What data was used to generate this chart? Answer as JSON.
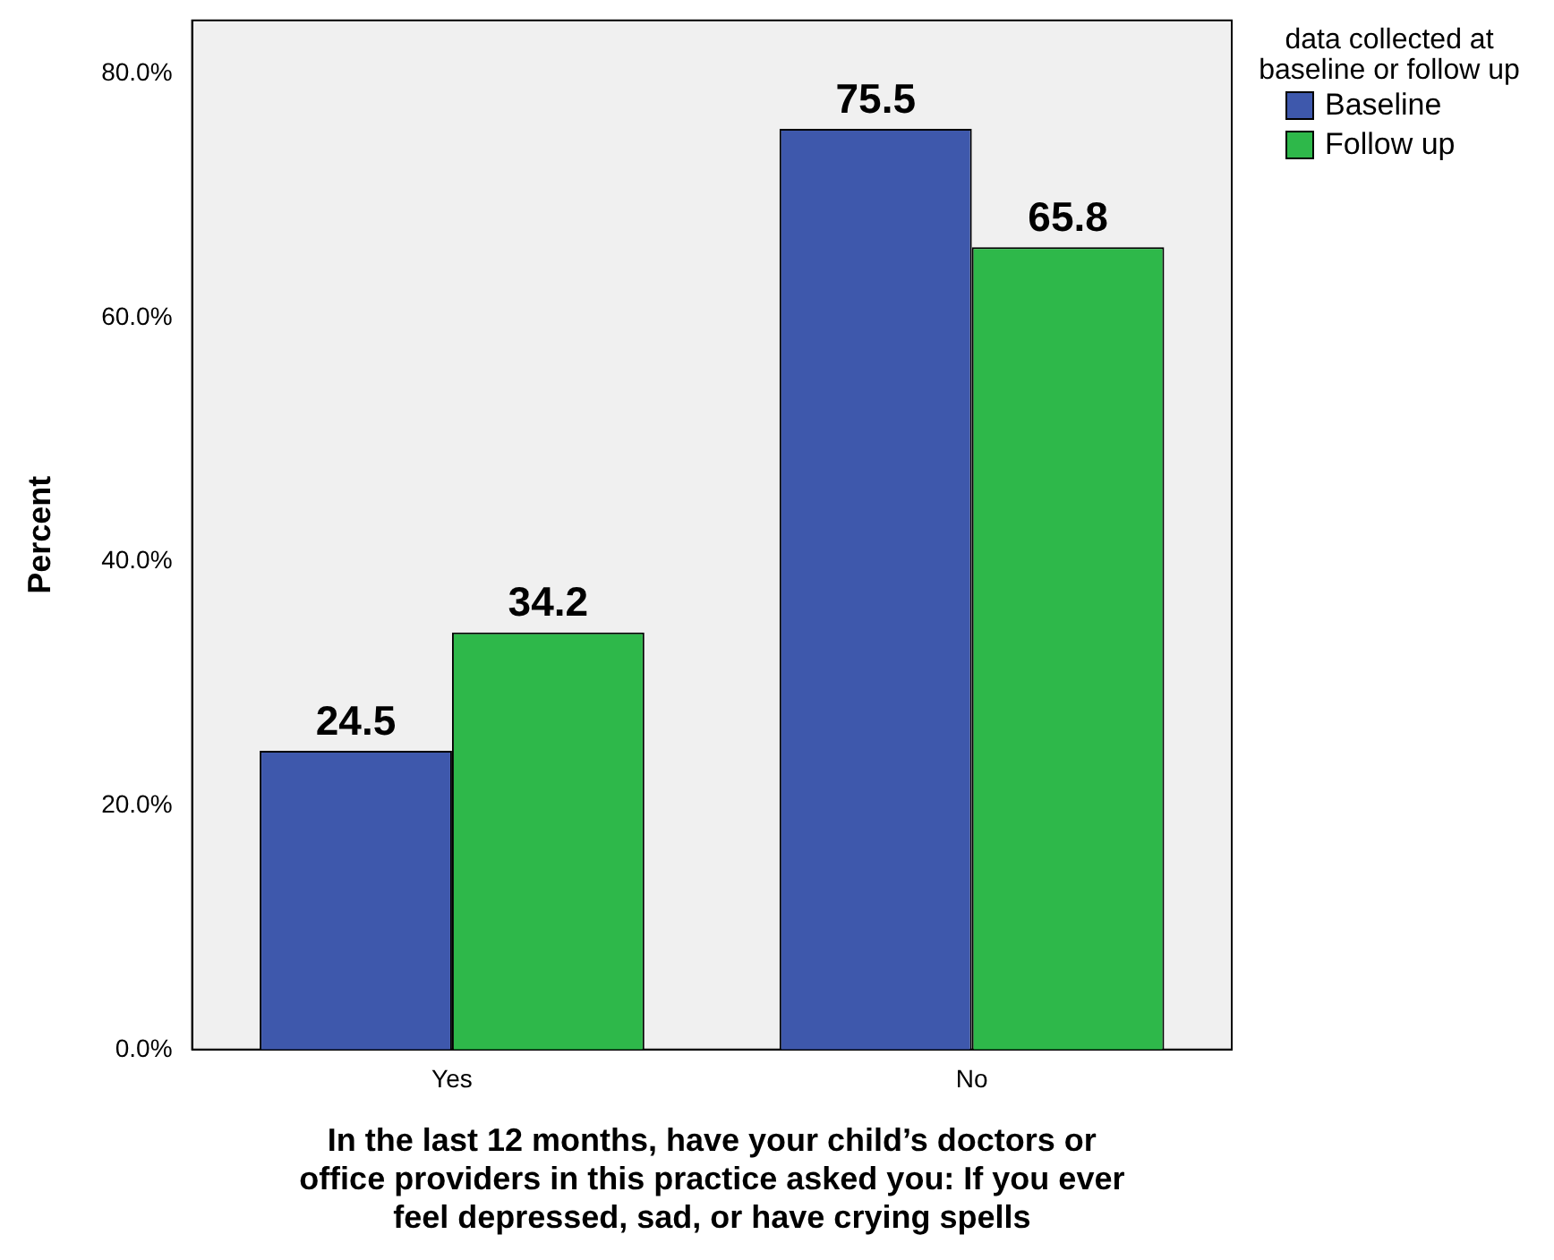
{
  "chart_data": {
    "type": "bar",
    "xlabel": "In the last 12 months, have your child’s doctors or office providers in this practice asked you: If you ever feel depressed, sad, or have crying spells",
    "ylabel": "Percent",
    "legend_title": "data collected at baseline or follow up",
    "categories": [
      "Yes",
      "No"
    ],
    "series": [
      {
        "name": "Baseline",
        "color": "#3e58ac",
        "values": [
          24.5,
          75.5
        ]
      },
      {
        "name": "Follow up",
        "color": "#2eb84a",
        "values": [
          34.2,
          65.8
        ]
      }
    ],
    "ylim": [
      0,
      84.4
    ],
    "yticks": [
      {
        "value": 0,
        "label": "0.0%"
      },
      {
        "value": 20,
        "label": "20.0%"
      },
      {
        "value": 40,
        "label": "40.0%"
      },
      {
        "value": 60,
        "label": "60.0%"
      },
      {
        "value": 80,
        "label": "80.0%"
      }
    ],
    "grid": false,
    "legend": "top right",
    "data_labels": true
  }
}
